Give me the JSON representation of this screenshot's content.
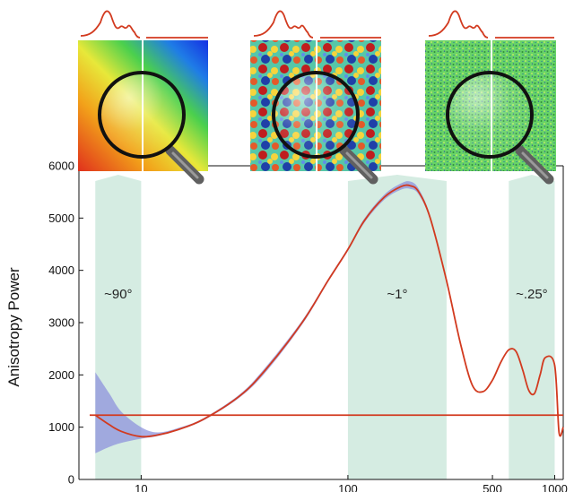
{
  "chart_data": {
    "type": "line",
    "title": "",
    "xlabel": "",
    "ylabel": "Anisotropy Power",
    "xscale": "log",
    "xlim": [
      5,
      1100
    ],
    "ylim": [
      0,
      6000
    ],
    "yticks": [
      0,
      1000,
      2000,
      3000,
      4000,
      5000,
      6000
    ],
    "xticks": [
      {
        "value": 10,
        "label": "10"
      },
      {
        "value": 100,
        "label": "100"
      },
      {
        "value": 500,
        "label": "500"
      },
      {
        "value": 1000,
        "label": "1000"
      }
    ],
    "bands": [
      {
        "from": 6,
        "to": 10,
        "label": "~90°"
      },
      {
        "from": 100,
        "to": 300,
        "label": "~1°"
      },
      {
        "from": 600,
        "to": 1000,
        "label": "~.25°"
      }
    ],
    "series": [
      {
        "kind": "curve",
        "x": [
          6,
          7,
          8,
          10,
          12,
          15,
          20,
          30,
          40,
          60,
          80,
          100,
          120,
          150,
          180,
          200,
          220,
          250,
          300,
          350,
          400,
          450,
          500,
          550,
          600,
          650,
          700,
          750,
          800,
          850,
          900,
          1000,
          1050,
          1100
        ],
        "y": [
          1230,
          1050,
          920,
          820,
          850,
          950,
          1150,
          1600,
          2100,
          3000,
          3800,
          4400,
          4950,
          5400,
          5600,
          5620,
          5500,
          5000,
          3800,
          2600,
          1800,
          1680,
          1900,
          2250,
          2480,
          2450,
          2100,
          1700,
          1650,
          2000,
          2330,
          2180,
          900,
          1000
        ],
        "band_lower": [
          500,
          620,
          700,
          780,
          830,
          940,
          1130,
          1570,
          2050,
          2960,
          3770,
          4370,
          4910,
          5350,
          5540,
          5560,
          5450,
          4960,
          3780,
          2590,
          1790,
          1675,
          1895,
          2245,
          2475,
          2445,
          2095,
          1695,
          1645,
          1995,
          2325,
          2175,
          895,
          995
        ],
        "band_upper": [
          2050,
          1650,
          1300,
          1000,
          900,
          980,
          1170,
          1630,
          2150,
          3040,
          3830,
          4430,
          4990,
          5450,
          5660,
          5700,
          5560,
          5040,
          3820,
          2610,
          1810,
          1685,
          1905,
          2255,
          2485,
          2455,
          2105,
          1705,
          1655,
          2005,
          2335,
          2185,
          905,
          1005
        ],
        "color": "#d23a1f",
        "band_color": "#8d93dc"
      },
      {
        "kind": "horizontal-line",
        "value": 1230,
        "color": "#d23a1f"
      }
    ]
  },
  "insets": [
    {
      "label": "low-ell-map",
      "colors": [
        "#e0301c",
        "#f2a21a",
        "#e7e83a",
        "#4bd04d",
        "#1f7de6",
        "#1530e3"
      ]
    },
    {
      "label": "mid-ell-map",
      "colors": [
        "#bf1e1e",
        "#f6d43c",
        "#56c7a8",
        "#5f8ee8",
        "#1f40a8"
      ]
    },
    {
      "label": "high-ell-map",
      "colors": [
        "#68d366",
        "#2f8f3b",
        "#d2ec69",
        "#37619c",
        "#1f6fa8"
      ]
    }
  ],
  "band_fill": "#d5ece2",
  "lens": {
    "glass": "#ffffff",
    "ring": "#111111",
    "handle": "#606060"
  }
}
